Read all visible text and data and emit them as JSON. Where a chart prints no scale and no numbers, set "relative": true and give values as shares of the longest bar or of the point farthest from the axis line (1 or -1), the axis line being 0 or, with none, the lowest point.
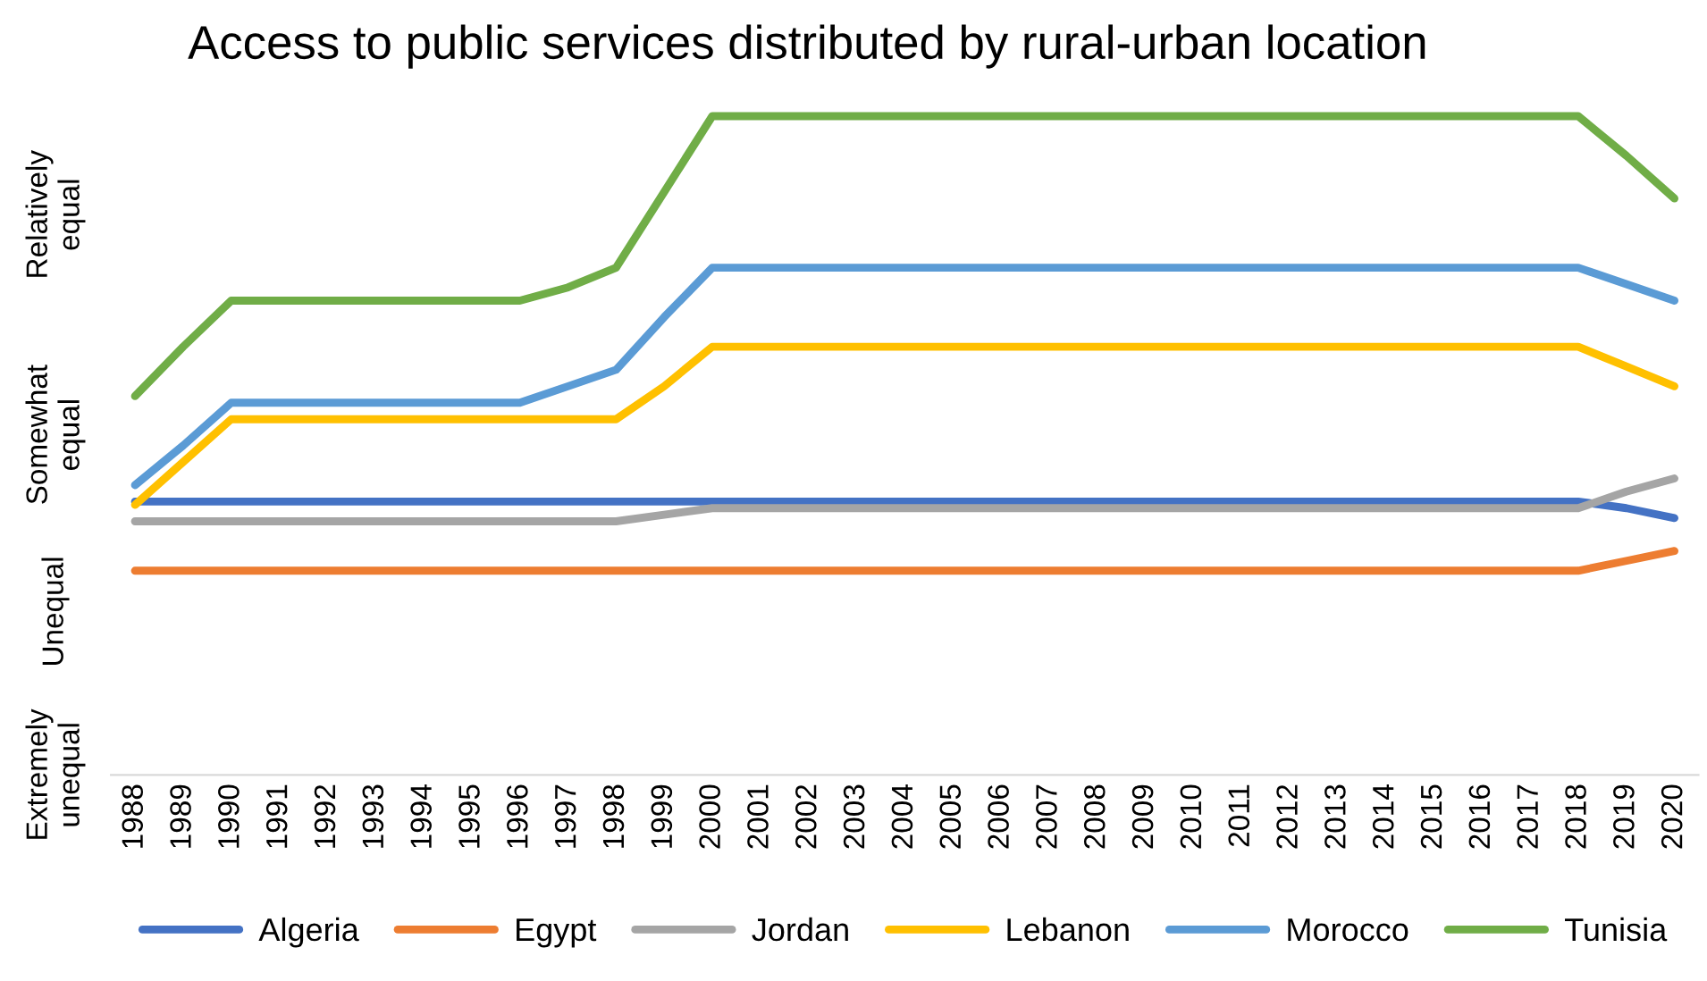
{
  "chart_data": {
    "type": "line",
    "title": "Access to public services distributed by rural-urban location",
    "categories": [
      "1988",
      "1989",
      "1990",
      "1991",
      "1992",
      "1993",
      "1994",
      "1995",
      "1996",
      "1997",
      "1998",
      "1999",
      "2000",
      "2001",
      "2002",
      "2003",
      "2004",
      "2005",
      "2006",
      "2007",
      "2008",
      "2009",
      "2010",
      "2011",
      "2012",
      "2013",
      "2014",
      "2015",
      "2016",
      "2017",
      "2018",
      "2019",
      "2020"
    ],
    "relative": true,
    "series": [
      {
        "name": "Algeria",
        "color": "#4472c4",
        "values": [
          0.415,
          0.415,
          0.415,
          0.415,
          0.415,
          0.415,
          0.415,
          0.415,
          0.415,
          0.415,
          0.415,
          0.415,
          0.415,
          0.415,
          0.415,
          0.415,
          0.415,
          0.415,
          0.415,
          0.415,
          0.415,
          0.415,
          0.415,
          0.415,
          0.415,
          0.415,
          0.415,
          0.415,
          0.415,
          0.415,
          0.415,
          0.405,
          0.39
        ]
      },
      {
        "name": "Egypt",
        "color": "#ed7d31",
        "values": [
          0.31,
          0.31,
          0.31,
          0.31,
          0.31,
          0.31,
          0.31,
          0.31,
          0.31,
          0.31,
          0.31,
          0.31,
          0.31,
          0.31,
          0.31,
          0.31,
          0.31,
          0.31,
          0.31,
          0.31,
          0.31,
          0.31,
          0.31,
          0.31,
          0.31,
          0.31,
          0.31,
          0.31,
          0.31,
          0.31,
          0.31,
          0.325,
          0.34
        ]
      },
      {
        "name": "Jordan",
        "color": "#a5a5a5",
        "values": [
          0.385,
          0.385,
          0.385,
          0.385,
          0.385,
          0.385,
          0.385,
          0.385,
          0.385,
          0.385,
          0.385,
          0.395,
          0.405,
          0.405,
          0.405,
          0.405,
          0.405,
          0.405,
          0.405,
          0.405,
          0.405,
          0.405,
          0.405,
          0.405,
          0.405,
          0.405,
          0.405,
          0.405,
          0.405,
          0.405,
          0.405,
          0.43,
          0.45
        ]
      },
      {
        "name": "Lebanon",
        "color": "#ffc000",
        "values": [
          0.41,
          0.475,
          0.54,
          0.54,
          0.54,
          0.54,
          0.54,
          0.54,
          0.54,
          0.54,
          0.54,
          0.59,
          0.65,
          0.65,
          0.65,
          0.65,
          0.65,
          0.65,
          0.65,
          0.65,
          0.65,
          0.65,
          0.65,
          0.65,
          0.65,
          0.65,
          0.65,
          0.65,
          0.65,
          0.65,
          0.65,
          0.62,
          0.59
        ]
      },
      {
        "name": "Morocco",
        "color": "#5b9bd5",
        "values": [
          0.44,
          0.5,
          0.565,
          0.565,
          0.565,
          0.565,
          0.565,
          0.565,
          0.565,
          0.59,
          0.615,
          0.695,
          0.77,
          0.77,
          0.77,
          0.77,
          0.77,
          0.77,
          0.77,
          0.77,
          0.77,
          0.77,
          0.77,
          0.77,
          0.77,
          0.77,
          0.77,
          0.77,
          0.77,
          0.77,
          0.77,
          0.745,
          0.72
        ]
      },
      {
        "name": "Tunisia",
        "color": "#70ad47",
        "values": [
          0.575,
          0.65,
          0.72,
          0.72,
          0.72,
          0.72,
          0.72,
          0.72,
          0.72,
          0.74,
          0.77,
          0.885,
          1.0,
          1.0,
          1.0,
          1.0,
          1.0,
          1.0,
          1.0,
          1.0,
          1.0,
          1.0,
          1.0,
          1.0,
          1.0,
          1.0,
          1.0,
          1.0,
          1.0,
          1.0,
          1.0,
          0.94,
          0.875
        ]
      }
    ],
    "annotations": [
      "Relatively\nequal",
      "Somewhat\nequal",
      "Unequal",
      "Extremely\nunequal"
    ],
    "grid": false,
    "legend": "bottom",
    "marker": "none",
    "line_style": "solid"
  }
}
